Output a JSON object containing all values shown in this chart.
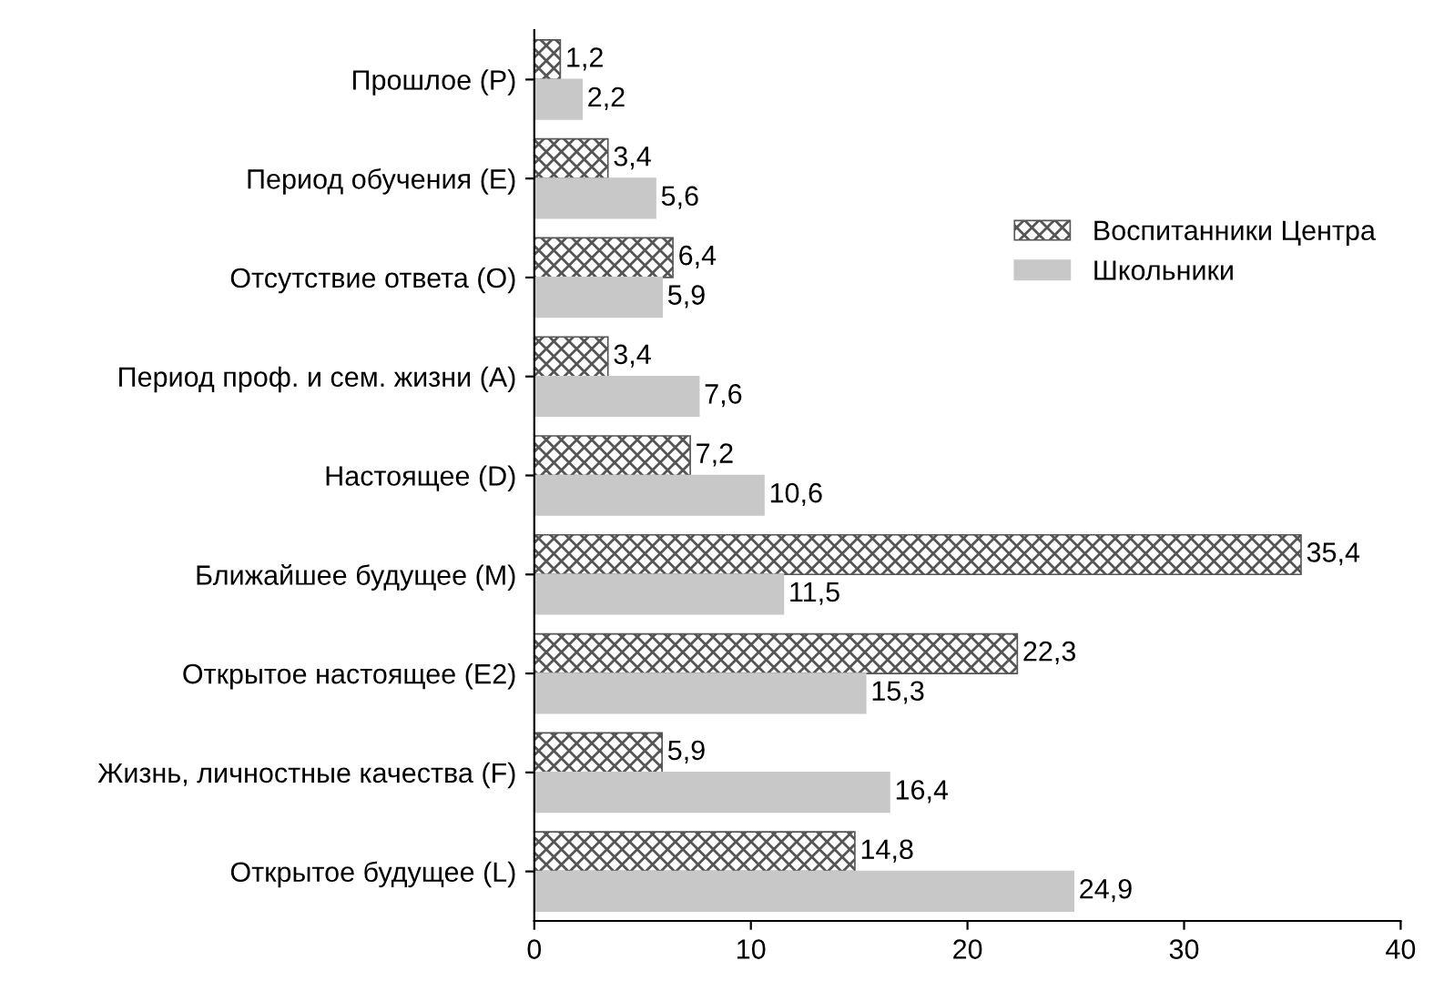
{
  "chart_data": {
    "type": "bar",
    "orientation": "horizontal",
    "categories": [
      "Прошлое (P)",
      "Период обучения (E)",
      "Отсутствие ответа (O)",
      "Период проф. и сем. жизни (A)",
      "Настоящее (D)",
      "Ближайшее будущее (M)",
      "Открытое настоящее (E2)",
      "Жизнь, личностные качества (F)",
      "Открытое будущее (L)"
    ],
    "series": [
      {
        "name": "Воспитанники Центра",
        "color": "#555555",
        "values": [
          1.2,
          3.4,
          6.4,
          3.4,
          7.2,
          35.4,
          22.3,
          5.9,
          14.8
        ],
        "value_labels": [
          "1,2",
          "3,4",
          "6,4",
          "3,4",
          "7,2",
          "35,4",
          "22,3",
          "5,9",
          "14,8"
        ]
      },
      {
        "name": "Школьники",
        "color": "#c8c8c8",
        "values": [
          2.2,
          5.6,
          5.9,
          7.6,
          10.6,
          11.5,
          15.3,
          16.4,
          24.9
        ],
        "value_labels": [
          "2,2",
          "5,6",
          "5,9",
          "7,6",
          "10,6",
          "11,5",
          "15,3",
          "16,4",
          "24,9"
        ]
      }
    ],
    "xlim": [
      0,
      40
    ],
    "xticks": [
      0,
      10,
      20,
      30,
      40
    ],
    "grid": false,
    "legend": "right"
  }
}
